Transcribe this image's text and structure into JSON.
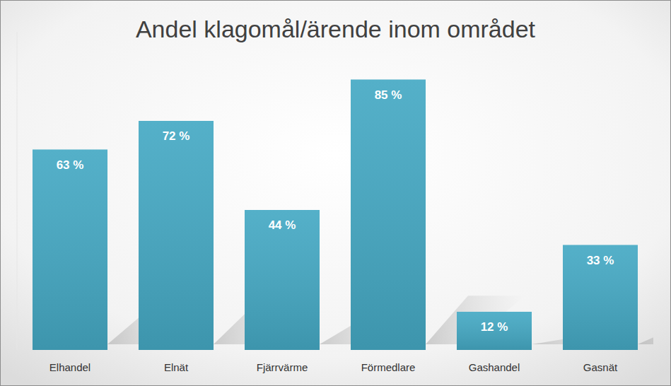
{
  "chart_data": {
    "type": "bar",
    "title": "Andel klagomål/ärende inom området",
    "categories": [
      "Elhandel",
      "Elnät",
      "Fjärrvärme",
      "Förmedlare",
      "Gashandel",
      "Gasnät"
    ],
    "values": [
      63,
      72,
      44,
      85,
      12,
      33
    ],
    "value_labels": [
      "63 %",
      "72 %",
      "44 %",
      "85 %",
      "12 %",
      "33 %"
    ],
    "color": "#45a9c4",
    "ylim": [
      0,
      100
    ],
    "data_labels": true,
    "tick_labels": "x",
    "grid": false
  }
}
